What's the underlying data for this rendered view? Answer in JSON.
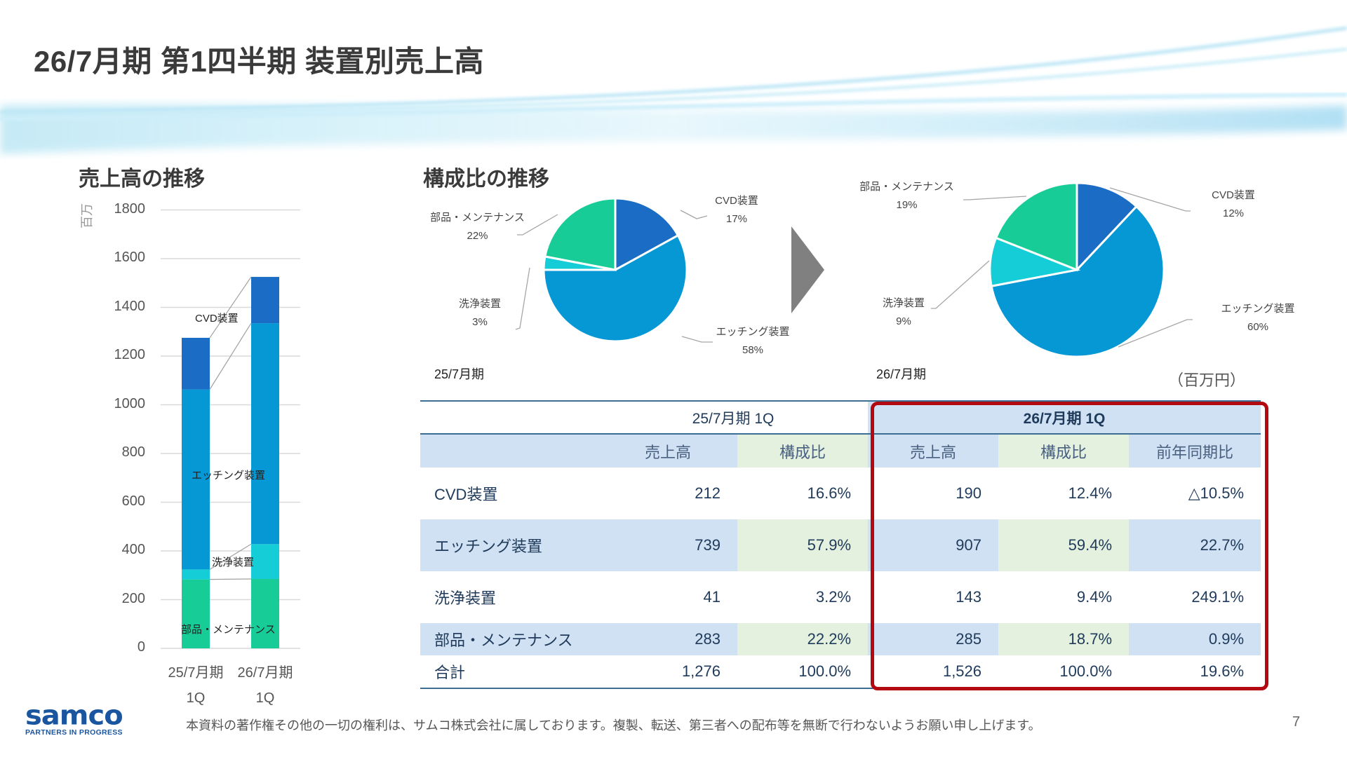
{
  "page": {
    "title": "26/7月期 第1四半期 装置別売上高",
    "page_number": "7",
    "footer_notice": "本資料の著作権その他の一切の権利は、サムコ株式会社に属しております。複製、転送、第三者への配布等を無断で行わないようお願い申し上げます。",
    "logo": {
      "word": "samco",
      "tagline": "PARTNERS IN PROGRESS"
    }
  },
  "colors": {
    "cvd": "#1a6cc4",
    "etching": "#0598d4",
    "cleaning": "#14cdd6",
    "parts": "#17cc96",
    "highlight_border": "#b30a12",
    "header_blue": "#cfe1f3",
    "header_green": "#e3f1de",
    "arrow": "#808080"
  },
  "bar_section": {
    "title": "売上高の推移",
    "unit_label": "百万"
  },
  "pie_section": {
    "title": "構成比の推移",
    "unit_note": "（百万円）"
  },
  "chart_data": [
    {
      "type": "bar",
      "stacked": true,
      "title": "売上高の推移",
      "ylabel": "百万",
      "ylim": [
        0,
        1800
      ],
      "yticks": [
        0,
        200,
        400,
        600,
        800,
        1000,
        1200,
        1400,
        1600,
        1800
      ],
      "ytick_labels": [
        "0",
        "200",
        "400",
        "600",
        "800",
        "1000",
        "1200",
        "1400",
        "1600",
        "1800"
      ],
      "grid": true,
      "categories": [
        "25/7月期 1Q",
        "26/7月期 1Q"
      ],
      "category_lines": [
        [
          "25/7月期",
          "1Q"
        ],
        [
          "26/7月期",
          "1Q"
        ]
      ],
      "series": [
        {
          "name": "部品・メンテナンス",
          "values": [
            283,
            285
          ]
        },
        {
          "name": "洗浄装置",
          "values": [
            41,
            143
          ]
        },
        {
          "name": "エッチング装置",
          "values": [
            739,
            907
          ]
        },
        {
          "name": "CVD装置",
          "values": [
            212,
            190
          ]
        }
      ],
      "series_labels_inline": true
    },
    {
      "type": "pie",
      "title": "25/7月期",
      "slices": [
        {
          "name": "CVD装置",
          "value": 17,
          "label": "17%"
        },
        {
          "name": "エッチング装置",
          "value": 58,
          "label": "58%"
        },
        {
          "name": "洗浄装置",
          "value": 3,
          "label": "3%"
        },
        {
          "name": "部品・メンテナンス",
          "value": 22,
          "label": "22%"
        }
      ]
    },
    {
      "type": "pie",
      "title": "26/7月期",
      "slices": [
        {
          "name": "CVD装置",
          "value": 12,
          "label": "12%"
        },
        {
          "name": "エッチング装置",
          "value": 60,
          "label": "60%"
        },
        {
          "name": "洗浄装置",
          "value": 9,
          "label": "9%"
        },
        {
          "name": "部品・メンテナンス",
          "value": 19,
          "label": "19%"
        }
      ]
    },
    {
      "type": "table",
      "unit": "百万円",
      "period_headers": [
        "25/7月期 1Q",
        "26/7月期 1Q"
      ],
      "column_headers": [
        "売上高",
        "構成比",
        "売上高",
        "構成比",
        "前年同期比"
      ],
      "rows": [
        {
          "name": "CVD装置",
          "cells": [
            "212",
            "16.6%",
            "190",
            "12.4%",
            "△10.5%"
          ]
        },
        {
          "name": "エッチング装置",
          "cells": [
            "739",
            "57.9%",
            "907",
            "59.4%",
            "22.7%"
          ]
        },
        {
          "name": "洗浄装置",
          "cells": [
            "41",
            "3.2%",
            "143",
            "9.4%",
            "249.1%"
          ]
        },
        {
          "name": "部品・メンテナンス",
          "cells": [
            "283",
            "22.2%",
            "285",
            "18.7%",
            "0.9%"
          ]
        }
      ],
      "total": {
        "name": "合計",
        "cells": [
          "1,276",
          "100.0%",
          "1,526",
          "100.0%",
          "19.6%"
        ]
      }
    }
  ]
}
